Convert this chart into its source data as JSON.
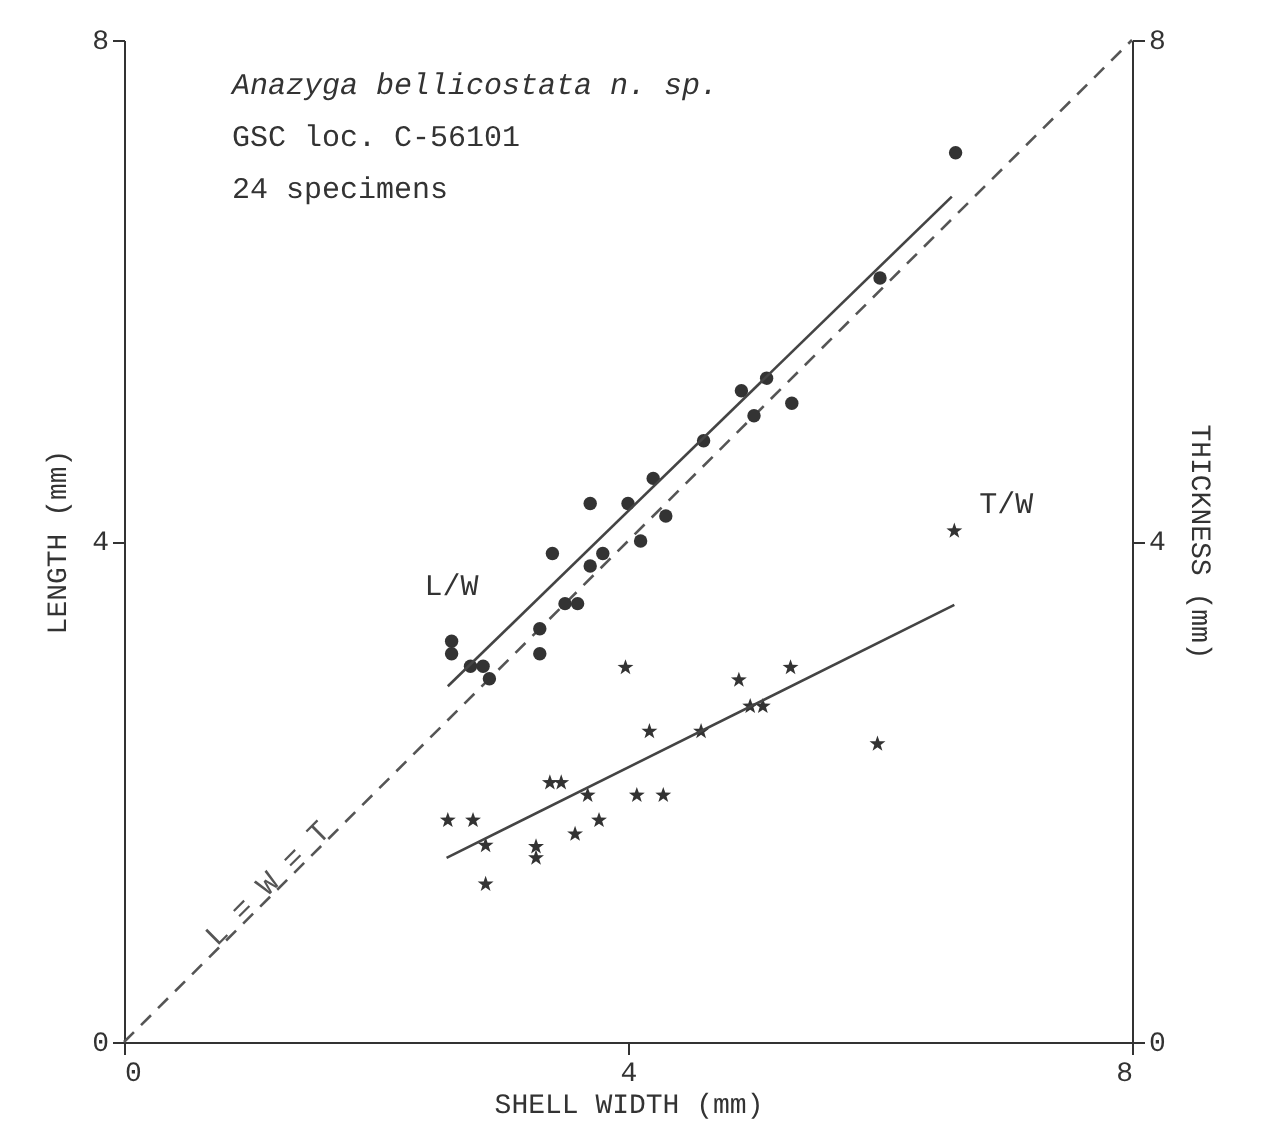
{
  "chart_data": {
    "type": "scatter",
    "xlabel": "SHELL WIDTH (mm)",
    "ylabel": "LENGTH (mm)",
    "y2label": "THICKNESS (mm)",
    "xlim": [
      0,
      8
    ],
    "xticks": [
      0,
      4,
      8
    ],
    "ylim": [
      0,
      8
    ],
    "yticks": [
      0,
      4,
      8
    ],
    "y2lim": [
      0,
      8
    ],
    "y2ticks": [
      0,
      4,
      8
    ],
    "grid": false,
    "annotations": [
      "Anazyga bellicostata n. sp.",
      "GSC loc. C-56101",
      "24 specimens"
    ],
    "series": [
      {
        "name": "L = W = T",
        "type": "line",
        "line_style": "dashed",
        "marker": "none",
        "color": "#555555",
        "x": [
          0,
          8
        ],
        "values": [
          0,
          8
        ]
      },
      {
        "name": "L/W",
        "marker": "circle",
        "color": "#333333",
        "x": [
          2.6,
          2.6,
          2.75,
          2.85,
          2.9,
          3.3,
          3.3,
          3.4,
          3.5,
          3.6,
          3.7,
          3.7,
          3.8,
          4.0,
          4.1,
          4.2,
          4.3,
          4.6,
          4.9,
          5.0,
          5.1,
          5.3,
          6.0,
          6.6
        ],
        "values": [
          3.2,
          3.1,
          3.0,
          3.0,
          2.9,
          3.3,
          3.1,
          3.9,
          3.5,
          3.5,
          3.8,
          4.3,
          3.9,
          4.3,
          4.0,
          4.5,
          4.2,
          4.8,
          5.2,
          5.0,
          5.3,
          5.1,
          6.1,
          7.1
        ]
      },
      {
        "type": "line",
        "line_style": "solid",
        "marker": "none",
        "color": "#444444",
        "x": [
          2.57,
          6.57
        ],
        "values": [
          2.84,
          6.75
        ]
      },
      {
        "name": "T/W",
        "marker": "star",
        "axis": "y2",
        "color": "#333333",
        "x": [
          2.57,
          2.77,
          2.87,
          2.87,
          3.27,
          3.27,
          3.38,
          3.47,
          3.58,
          3.68,
          3.77,
          3.98,
          4.07,
          4.17,
          4.28,
          4.58,
          4.88,
          4.97,
          5.07,
          5.29,
          5.98,
          6.59
        ],
        "values": [
          1.77,
          1.77,
          1.57,
          1.26,
          1.56,
          1.47,
          2.07,
          2.07,
          1.66,
          1.97,
          1.77,
          2.99,
          1.97,
          2.48,
          1.97,
          2.48,
          2.89,
          2.68,
          2.68,
          2.99,
          2.38,
          4.08
        ]
      },
      {
        "type": "line",
        "line_style": "solid",
        "marker": "none",
        "axis": "y2",
        "color": "#444444",
        "x": [
          2.56,
          6.59
        ],
        "values": [
          1.47,
          3.49
        ]
      }
    ]
  }
}
